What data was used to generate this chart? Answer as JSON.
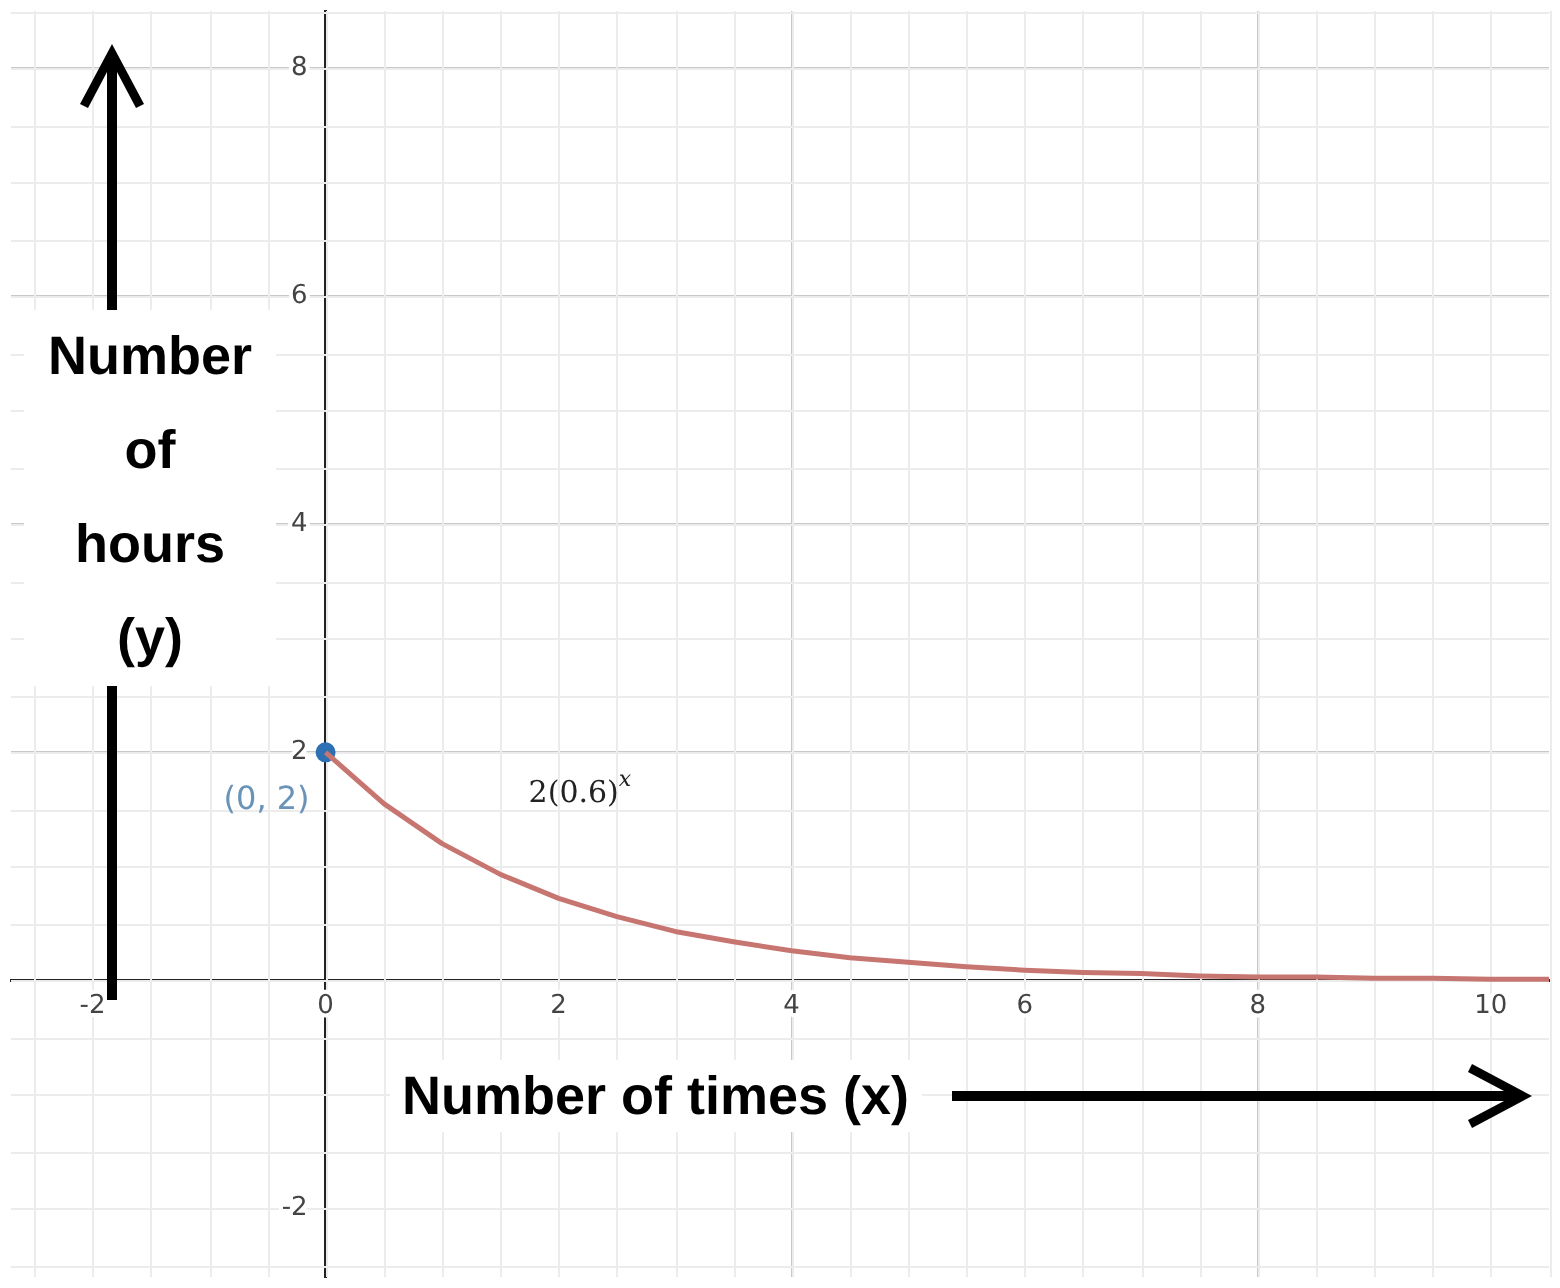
{
  "chart_data": {
    "type": "line",
    "xlabel": "Number of times (x)",
    "ylabel": "Number of hours (y)",
    "xlim": [
      -2.7,
      10.5
    ],
    "ylim": [
      -2.6,
      8.5
    ],
    "xticks": [
      -2,
      0,
      2,
      4,
      6,
      8,
      10
    ],
    "yticks": [
      -2,
      {
        "value": 0,
        "label": null
      },
      2,
      4,
      6,
      8
    ],
    "grid": true,
    "legend": false,
    "series": [
      {
        "name": "2(0.6)$^{x}$",
        "color": "#c77570",
        "x": [
          0,
          0.5,
          1,
          1.5,
          2,
          2.5,
          3,
          3.5,
          4,
          4.5,
          5,
          5.5,
          6,
          6.5,
          7,
          7.5,
          8,
          8.5,
          9,
          9.5,
          10,
          10.5
        ],
        "values": [
          2,
          1.55,
          1.2,
          0.93,
          0.72,
          0.56,
          0.43,
          0.34,
          0.26,
          0.2,
          0.16,
          0.12,
          0.09,
          0.07,
          0.06,
          0.04,
          0.03,
          0.03,
          0.02,
          0.02,
          0.01,
          0.01
        ]
      },
      {
        "type": "scatter",
        "color": "#2d70b3",
        "marker": "circle",
        "x": [
          0
        ],
        "values": [
          2
        ]
      }
    ],
    "annotations": [
      {
        "text": "(0, 2)",
        "x": 0,
        "y": 2
      }
    ]
  }
}
